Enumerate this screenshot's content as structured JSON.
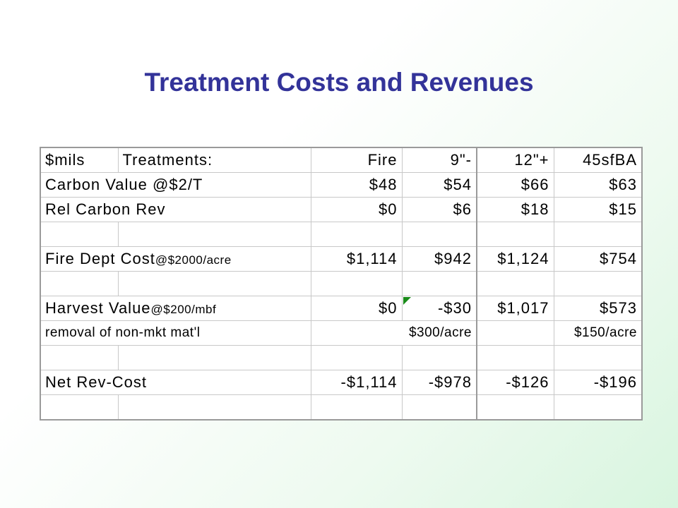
{
  "title": "Treatment Costs and Revenues",
  "table": {
    "header": [
      "$mils",
      "Treatments:",
      "Fire",
      "9\"-",
      "12\"+",
      "45sfBA"
    ],
    "carbon_value": {
      "label": "Carbon Value @$2/T",
      "values": [
        "$48",
        "$54",
        "$66",
        "$63"
      ]
    },
    "rel_carbon_rev": {
      "label": "Rel Carbon Rev",
      "values": [
        "$0",
        "$6",
        "$18",
        "$15"
      ]
    },
    "fire_dept_cost": {
      "label": "Fire Dept Cost",
      "sub": "@$2000/acre",
      "values": [
        "$1,114",
        "$942",
        "$1,124",
        "$754"
      ]
    },
    "harvest_value": {
      "label": "Harvest Value",
      "sub": "@$200/mbf",
      "values": [
        "$0",
        "-$30",
        "$1,017",
        "$573"
      ]
    },
    "removal": {
      "label": "removal of non-mkt mat'l",
      "value_a": "$300/acre",
      "value_b": "$150/acre"
    },
    "net_rev_cost": {
      "label": "Net Rev-Cost",
      "values": [
        "-$1,114",
        "-$978",
        "-$126",
        "-$196"
      ]
    }
  },
  "colors": {
    "title": "#333399",
    "comment_marker": "#1a8c1a"
  }
}
